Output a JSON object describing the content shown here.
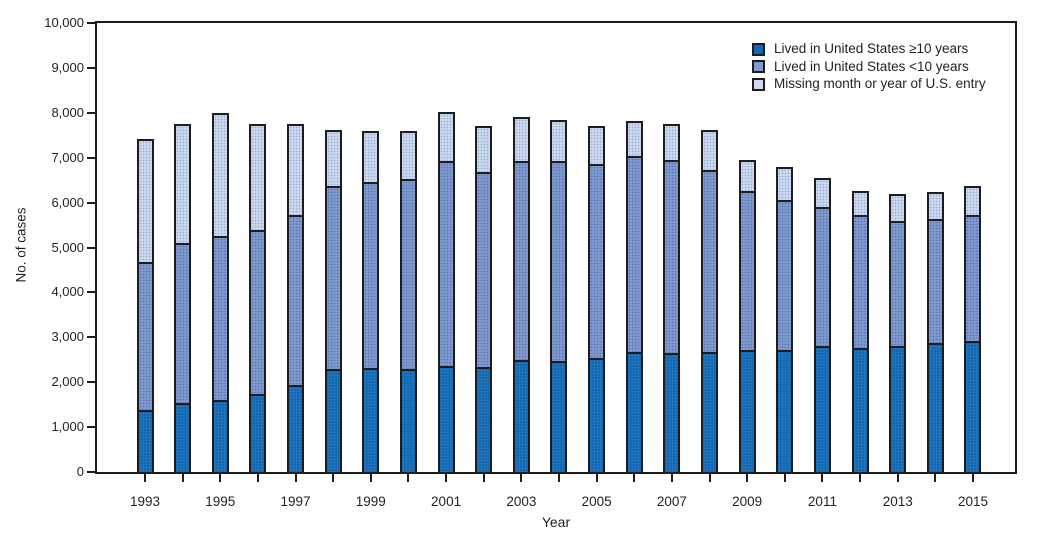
{
  "chart_data": {
    "type": "bar",
    "stacked": true,
    "title": "",
    "xlabel": "Year",
    "ylabel": "No. of cases",
    "ylim": [
      0,
      10000
    ],
    "ytick_step": 1000,
    "ytick_labels": [
      "0",
      "1,000",
      "2,000",
      "3,000",
      "4,000",
      "5,000",
      "6,000",
      "7,000",
      "8,000",
      "9,000",
      "10,000"
    ],
    "grid": false,
    "legend_position": "top-right",
    "categories": [
      "1993",
      "1994",
      "1995",
      "1996",
      "1997",
      "1998",
      "1999",
      "2000",
      "2001",
      "2002",
      "2003",
      "2004",
      "2005",
      "2006",
      "2007",
      "2008",
      "2009",
      "2010",
      "2011",
      "2012",
      "2013",
      "2014",
      "2015"
    ],
    "xtick_labeled_years": [
      "1993",
      "1995",
      "1997",
      "1999",
      "2001",
      "2003",
      "2005",
      "2007",
      "2009",
      "2011",
      "2013",
      "2015"
    ],
    "stack_order_bottom_to_top": [
      "Lived in United States ≥10 years",
      "Lived in United States <10 years",
      "Missing month or year of U.S. entry"
    ],
    "series": [
      {
        "name": "Lived in United States ≥10 years",
        "color": "#1269b3",
        "values": [
          1350,
          1510,
          1590,
          1730,
          1920,
          2280,
          2320,
          2280,
          2350,
          2330,
          2500,
          2470,
          2540,
          2680,
          2660,
          2680,
          2730,
          2720,
          2810,
          2780,
          2820,
          2890,
          2930
        ]
      },
      {
        "name": "Lived in United States <10 years",
        "color": "#7f9bce",
        "values": [
          3330,
          3580,
          3670,
          3670,
          3820,
          4120,
          4160,
          4270,
          4600,
          4370,
          4450,
          4480,
          4340,
          4400,
          4310,
          4070,
          3550,
          3360,
          3120,
          2980,
          2800,
          2770,
          2820
        ]
      },
      {
        "name": "Missing month or year of U.S. entry",
        "color": "#cdd9ee",
        "values": [
          2740,
          2670,
          2740,
          2360,
          2020,
          1220,
          1120,
          1050,
          1060,
          1000,
          960,
          890,
          830,
          740,
          790,
          870,
          670,
          720,
          610,
          500,
          580,
          570,
          610
        ]
      }
    ],
    "colors": {
      "outline": "#1f1c1d",
      "text": "#231f20",
      "background": "#ffffff"
    }
  }
}
